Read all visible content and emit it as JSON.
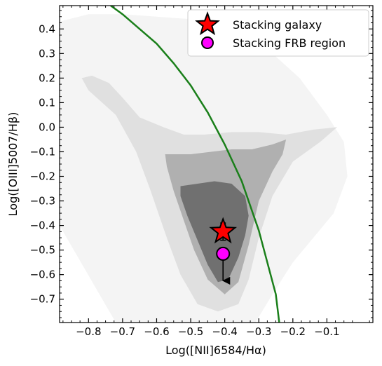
{
  "chart_data": {
    "type": "scatter",
    "xlabel": "Log([NII]6584/Hα)",
    "ylabel": "Log([OIII]5007/Hβ)",
    "xlim": [
      -0.885,
      0.035
    ],
    "ylim": [
      -0.795,
      0.495
    ],
    "xticks": [
      -0.8,
      -0.7,
      -0.6,
      -0.5,
      -0.4,
      -0.3,
      -0.2,
      -0.1
    ],
    "yticks": [
      -0.7,
      -0.6,
      -0.5,
      -0.4,
      -0.3,
      -0.2,
      -0.1,
      0.0,
      0.1,
      0.2,
      0.3,
      0.4
    ],
    "xtick_labels": [
      "−0.8",
      "−0.7",
      "−0.6",
      "−0.5",
      "−0.4",
      "−0.3",
      "−0.2",
      "−0.1"
    ],
    "ytick_labels": [
      "−0.7",
      "−0.6",
      "−0.5",
      "−0.4",
      "−0.3",
      "−0.2",
      "−0.1",
      "0.0",
      "0.1",
      "0.2",
      "0.3",
      "0.4"
    ],
    "legend_position": "top-right",
    "grid": false,
    "demarcation_curve": {
      "color": "#1a7f1a",
      "x": [
        -0.735,
        -0.7,
        -0.65,
        -0.6,
        -0.55,
        -0.5,
        -0.45,
        -0.4,
        -0.35,
        -0.3,
        -0.25,
        -0.24
      ],
      "y": [
        0.495,
        0.46,
        0.4,
        0.34,
        0.26,
        0.17,
        0.06,
        -0.07,
        -0.22,
        -0.42,
        -0.68,
        -0.795
      ]
    },
    "contours": [
      {
        "level": 1,
        "color": "#f4f4f4",
        "x": [
          -0.885,
          -0.8,
          -0.7,
          -0.6,
          -0.5,
          -0.4,
          -0.33,
          -0.26,
          -0.18,
          -0.1,
          -0.05,
          -0.04,
          -0.08,
          -0.14,
          -0.2,
          -0.26,
          -0.31,
          -0.34,
          -0.42,
          -0.56,
          -0.72,
          -0.885
        ],
        "y": [
          0.43,
          0.46,
          0.46,
          0.45,
          0.44,
          0.42,
          0.38,
          0.3,
          0.2,
          0.05,
          -0.06,
          -0.2,
          -0.35,
          -0.45,
          -0.55,
          -0.68,
          -0.795,
          -0.795,
          -0.795,
          -0.795,
          -0.795,
          -0.4
        ]
      },
      {
        "level": 2,
        "color": "#e0e0e0",
        "x": [
          -0.82,
          -0.79,
          -0.74,
          -0.7,
          -0.65,
          -0.58,
          -0.52,
          -0.46,
          -0.38,
          -0.3,
          -0.22,
          -0.14,
          -0.07,
          -0.12,
          -0.2,
          -0.26,
          -0.3,
          -0.33,
          -0.36,
          -0.42,
          -0.48,
          -0.53,
          -0.57,
          -0.62,
          -0.66,
          -0.72,
          -0.8
        ],
        "y": [
          0.2,
          0.21,
          0.18,
          0.12,
          0.04,
          0.0,
          -0.03,
          -0.03,
          -0.02,
          -0.02,
          -0.03,
          -0.01,
          0.0,
          -0.06,
          -0.14,
          -0.28,
          -0.45,
          -0.62,
          -0.72,
          -0.75,
          -0.72,
          -0.6,
          -0.45,
          -0.25,
          -0.1,
          0.05,
          0.15
        ]
      },
      {
        "level": 3,
        "color": "#b0b0b0",
        "x": [
          -0.575,
          -0.5,
          -0.44,
          -0.38,
          -0.32,
          -0.26,
          -0.22,
          -0.23,
          -0.26,
          -0.3,
          -0.33,
          -0.36,
          -0.4,
          -0.45,
          -0.49,
          -0.52,
          -0.55,
          -0.57
        ],
        "y": [
          -0.11,
          -0.11,
          -0.1,
          -0.09,
          -0.09,
          -0.07,
          -0.05,
          -0.11,
          -0.18,
          -0.3,
          -0.48,
          -0.63,
          -0.68,
          -0.62,
          -0.5,
          -0.38,
          -0.26,
          -0.16
        ]
      },
      {
        "level": 4,
        "color": "#707070",
        "x": [
          -0.53,
          -0.48,
          -0.43,
          -0.38,
          -0.34,
          -0.33,
          -0.34,
          -0.36,
          -0.39,
          -0.42,
          -0.45,
          -0.48,
          -0.51,
          -0.53
        ],
        "y": [
          -0.24,
          -0.23,
          -0.22,
          -0.23,
          -0.28,
          -0.36,
          -0.44,
          -0.53,
          -0.62,
          -0.63,
          -0.56,
          -0.46,
          -0.36,
          -0.28
        ]
      }
    ],
    "series": [
      {
        "name": "Stacking galaxy",
        "marker": "star",
        "color": "#ff0000",
        "x": [
          -0.405
        ],
        "y": [
          -0.425
        ],
        "yerr": [
          0.035
        ]
      },
      {
        "name": "Stacking FRB region",
        "marker": "circle",
        "color": "#ff00ff",
        "x": [
          -0.405
        ],
        "y": [
          -0.515
        ],
        "upper_limit_to": -0.625
      }
    ]
  }
}
